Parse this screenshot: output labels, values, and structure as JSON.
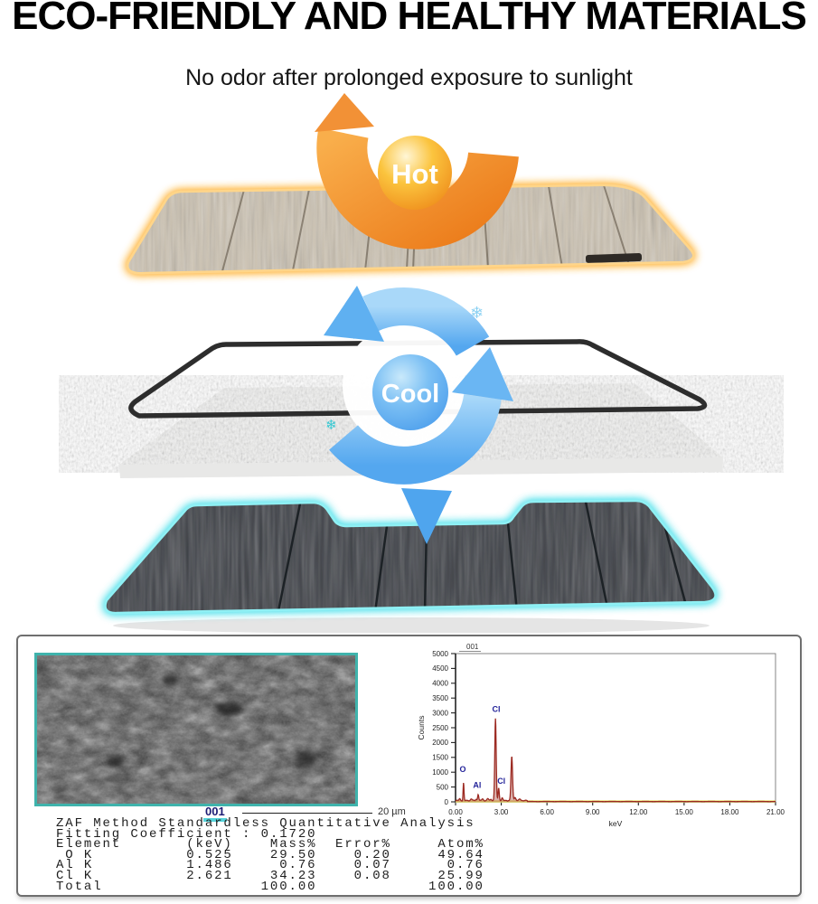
{
  "title": "ECO-FRIENDLY AND HEALTHY MATERIALS",
  "subtitle": "No odor after prolonged exposure to sunlight",
  "hot_label": "Hot",
  "cool_label": "Cool",
  "icons": {
    "snowflake": "❄"
  },
  "colors": {
    "hot_orange": "#F2921F",
    "hot_glow": "#FFB63E",
    "cool_blue": "#58A9EF",
    "cool_glow": "#54E2EC",
    "frame_black": "#2d2d2d",
    "shade_tan": "#cdc3b2",
    "shade_black": "#3b3e44"
  },
  "lab": {
    "sem_id": "001",
    "sem_scale": "20 µm",
    "analysis": {
      "line1": "ZAF Method Standardless Quantitative Analysis",
      "line2": "Fitting Coefficient : 0.1720",
      "headers": [
        "Element",
        "(keV)",
        "Mass%",
        "Error%",
        "Atom%"
      ],
      "rows": [
        [
          " O K",
          "0.525",
          "29.50",
          "0.20",
          "49.64"
        ],
        [
          "Al K",
          "1.486",
          "0.76",
          "0.07",
          "0.76"
        ],
        [
          "Cl K",
          "2.621",
          "34.23",
          "0.08",
          "25.99"
        ],
        [
          "Total",
          "",
          "100.00",
          "",
          "100.00"
        ]
      ]
    }
  },
  "chart_data": {
    "type": "line",
    "title": "001",
    "xlabel": "keV",
    "ylabel": "Counts",
    "xlim": [
      0,
      21
    ],
    "ylim": [
      0,
      5000
    ],
    "xticks": [
      "0.00",
      "3.00",
      "6.00",
      "9.00",
      "12.00",
      "15.00",
      "18.00",
      "21.00"
    ],
    "yticks": [
      0,
      500,
      1000,
      1500,
      2000,
      2500,
      3000,
      3500,
      4000,
      4500,
      5000
    ],
    "grid": false,
    "line_color": "#9c2a22",
    "fill_color": "rgba(173,84,74,0.45)",
    "baseline_color": "#efe87c",
    "peaks": [
      {
        "element": "O",
        "x": 0.525,
        "counts": 600,
        "width": 0.028
      },
      {
        "element": "Al",
        "x": 1.486,
        "counts": 210,
        "width": 0.035
      },
      {
        "element": "Cl",
        "x": 2.621,
        "counts": 2760,
        "width": 0.045
      },
      {
        "element": "Cl",
        "x": 2.83,
        "counts": 420,
        "width": 0.038
      },
      {
        "element": "",
        "x": 3.69,
        "counts": 1480,
        "width": 0.05
      }
    ],
    "peak_labels": [
      {
        "text": "O",
        "x": 0.27,
        "y": 1000
      },
      {
        "text": "Al",
        "x": 1.15,
        "y": 470
      },
      {
        "text": "Cl",
        "x": 2.4,
        "y": 3040
      },
      {
        "text": "Cl",
        "x": 2.74,
        "y": 610
      }
    ]
  }
}
